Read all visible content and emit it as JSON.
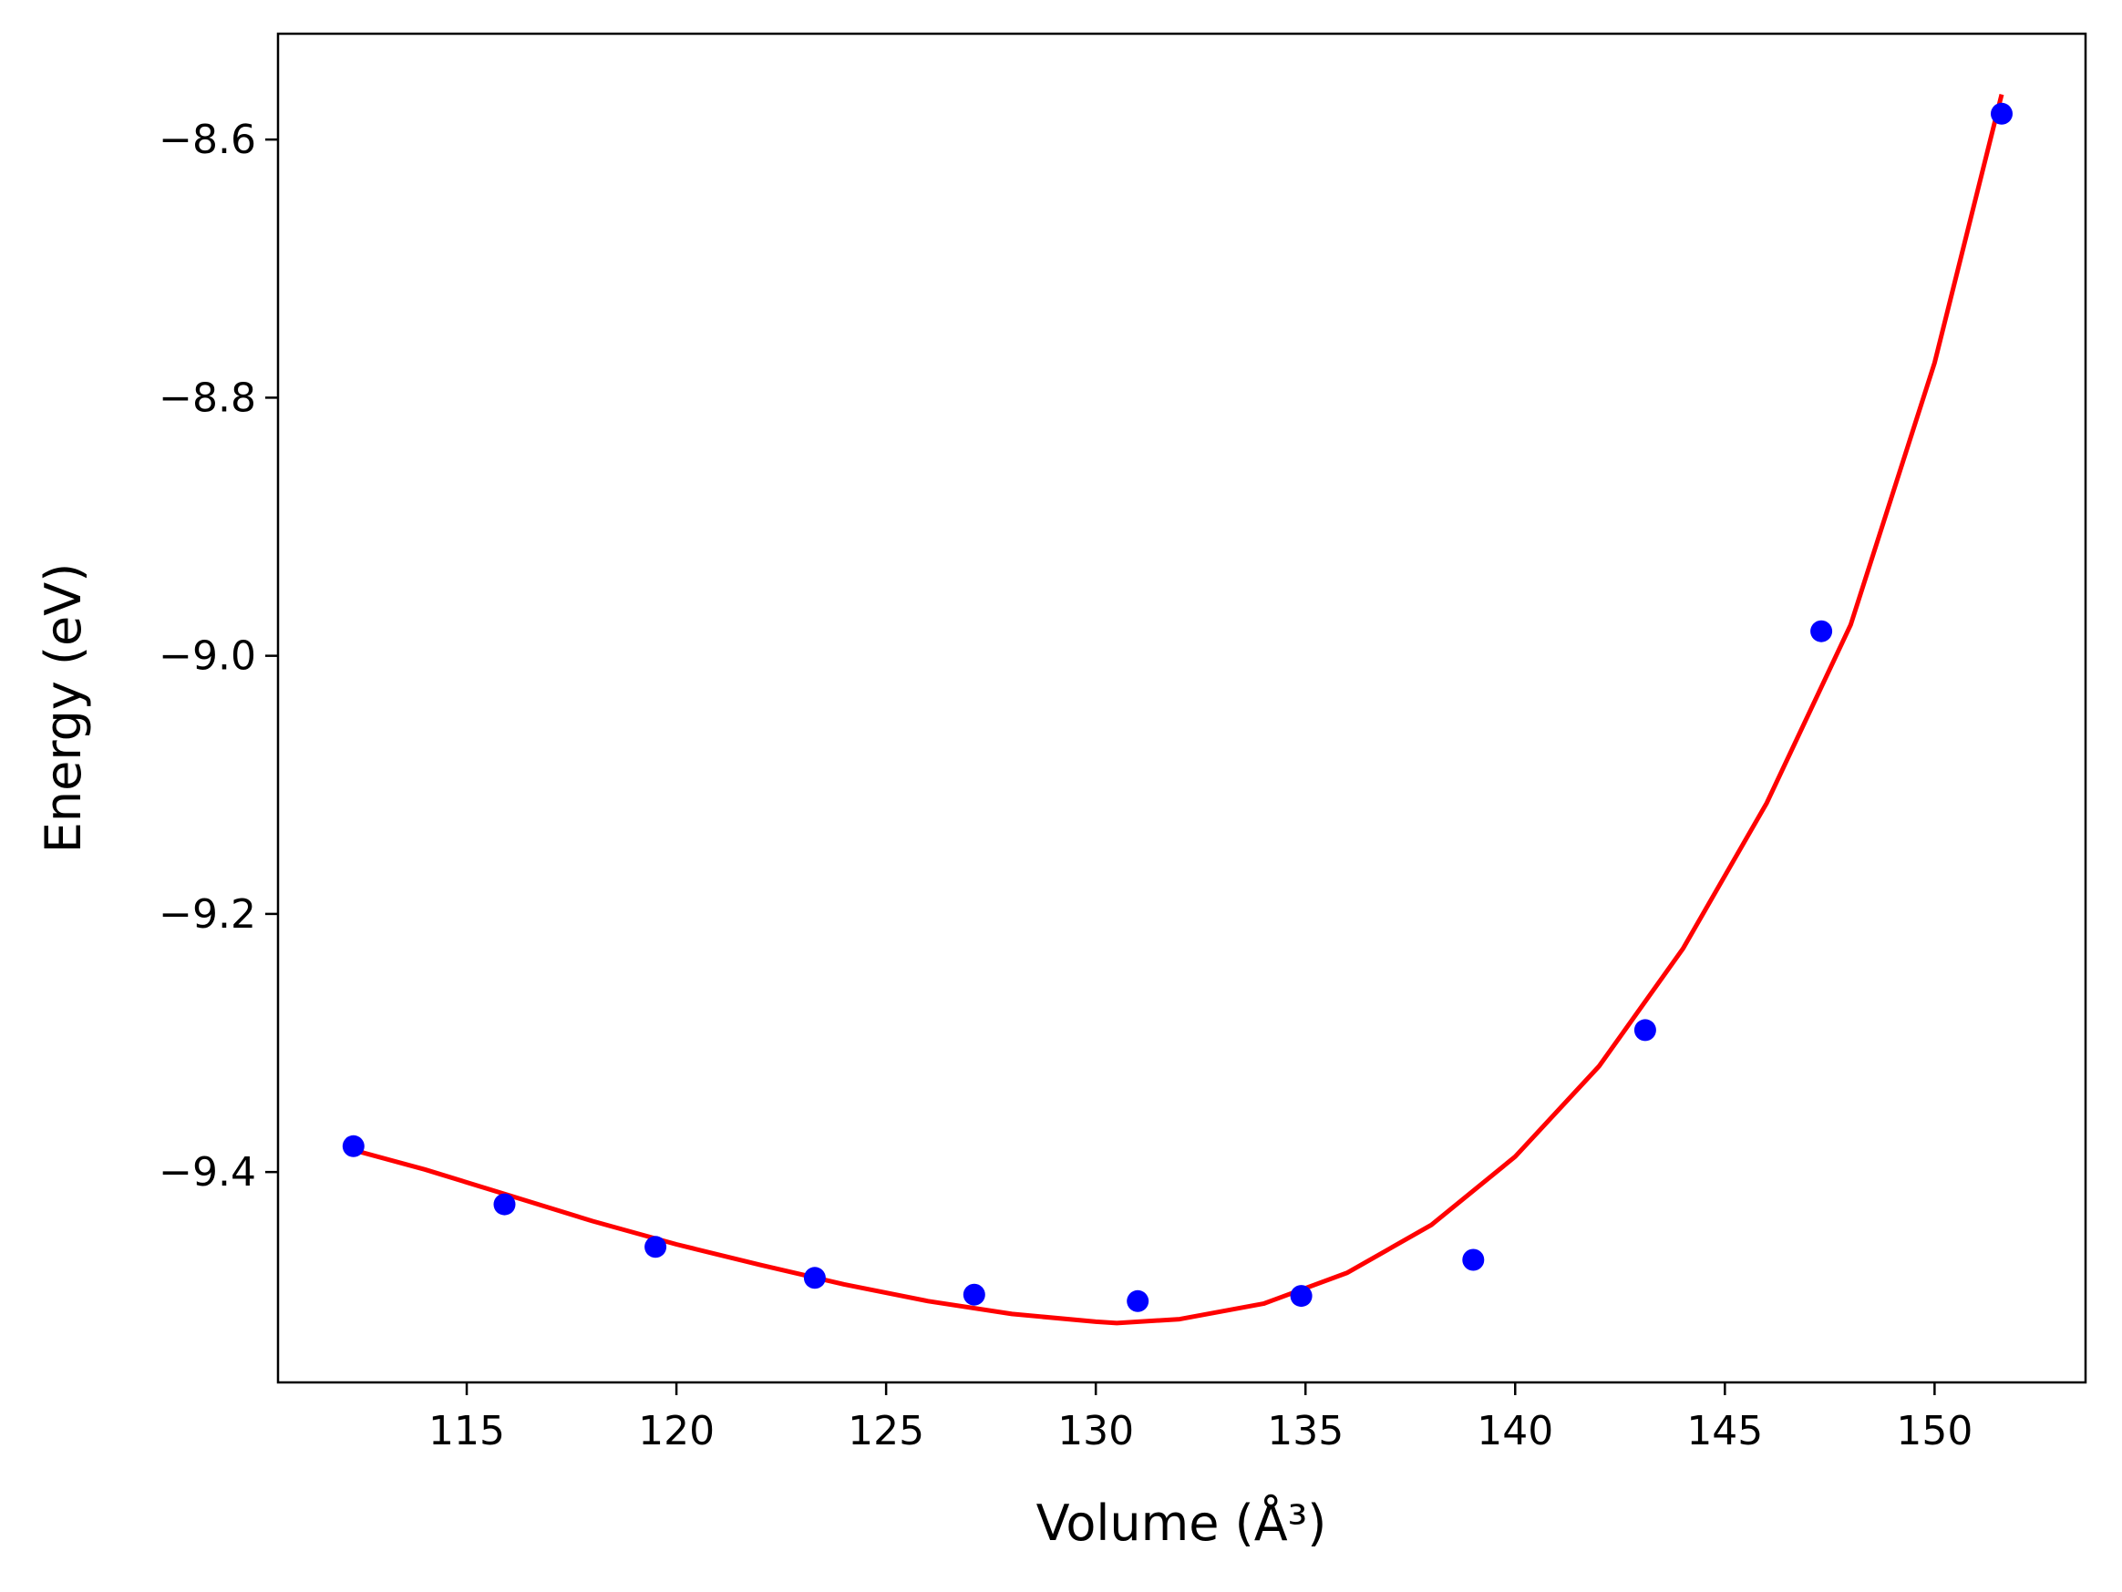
{
  "chart_data": {
    "type": "scatter",
    "title": "",
    "xlabel": "Volume (Å³)",
    "ylabel": "Energy (eV)",
    "xlim": [
      110.5,
      153.6
    ],
    "ylim": [
      -9.563,
      -8.518
    ],
    "xticks": [
      115,
      120,
      125,
      130,
      135,
      140,
      145,
      150
    ],
    "yticks": [
      -8.6,
      -8.8,
      -9.0,
      -9.2,
      -9.4
    ],
    "grid": false,
    "legend": "none",
    "series": [
      {
        "kind": "points",
        "color": "#0000ff",
        "x": [
          112.3,
          115.9,
          119.5,
          123.3,
          127.1,
          131.0,
          134.9,
          139.0,
          143.1,
          147.3,
          151.6
        ],
        "y": [
          -9.38,
          -9.425,
          -9.458,
          -9.482,
          -9.495,
          -9.5,
          -9.496,
          -9.468,
          -9.29,
          -8.981,
          -8.58
        ]
      },
      {
        "kind": "fit-curve",
        "color": "#ff0000",
        "x": [
          112.3,
          114,
          116,
          118,
          120,
          122,
          124,
          126,
          128,
          130,
          130.5,
          132,
          134,
          136,
          138,
          140,
          142,
          144,
          146,
          148,
          150,
          151.6
        ],
        "y": [
          -9.383,
          -9.398,
          -9.418,
          -9.438,
          -9.456,
          -9.472,
          -9.487,
          -9.5,
          -9.51,
          -9.516,
          -9.517,
          -9.514,
          -9.502,
          -9.478,
          -9.441,
          -9.388,
          -9.318,
          -9.227,
          -9.114,
          -8.976,
          -8.773,
          -8.565
        ]
      }
    ]
  }
}
